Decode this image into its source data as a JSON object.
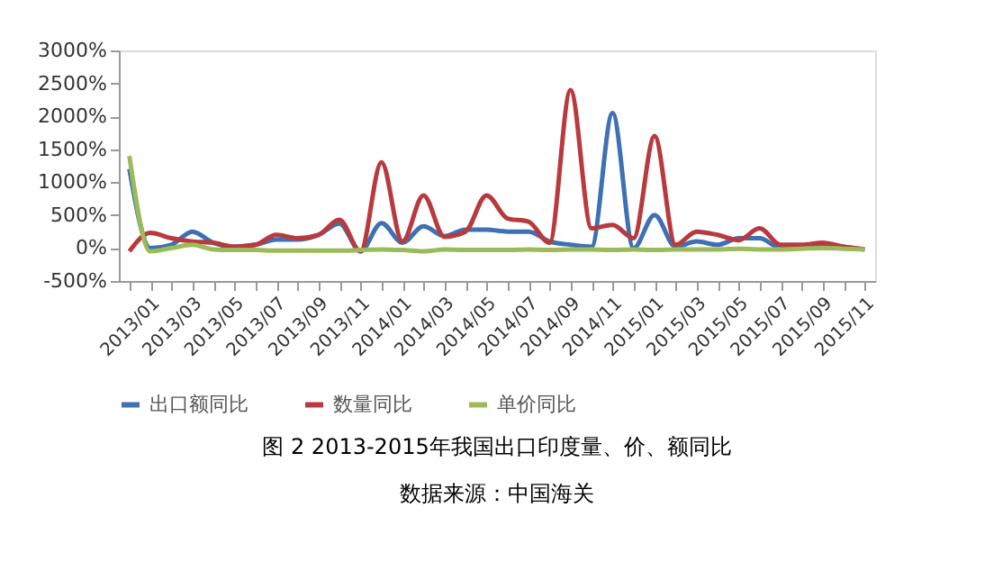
{
  "chart_data": {
    "type": "line",
    "title": "图 2 2013-2015年我国出口印度量、价、额同比",
    "annotations": [
      "数据来源：中国海关"
    ],
    "categories": [
      "2013/01",
      null,
      "2013/03",
      null,
      "2013/05",
      null,
      "2013/07",
      null,
      "2013/09",
      null,
      "2013/11",
      null,
      "2014/01",
      null,
      "2014/03",
      null,
      "2014/05",
      null,
      "2014/07",
      null,
      "2014/09",
      null,
      "2014/11",
      null,
      "2015/01",
      null,
      "2015/03",
      null,
      "2015/05",
      null,
      "2015/07",
      null,
      "2015/09",
      null,
      "2015/11",
      null
    ],
    "series": [
      {
        "name": "出口额同比",
        "color": "#3e70b3",
        "values": [
          1200,
          0,
          50,
          250,
          80,
          20,
          50,
          130,
          130,
          200,
          370,
          -50,
          380,
          80,
          330,
          180,
          280,
          280,
          250,
          250,
          100,
          50,
          20,
          2050,
          0,
          500,
          20,
          100,
          50,
          150,
          150,
          0,
          30,
          50,
          20,
          -20
        ]
      },
      {
        "name": "数量同比",
        "color": "#b83a3e",
        "values": [
          -50,
          230,
          150,
          100,
          80,
          20,
          50,
          200,
          150,
          200,
          430,
          -50,
          1300,
          100,
          800,
          170,
          250,
          800,
          450,
          400,
          80,
          2400,
          300,
          350,
          150,
          1700,
          50,
          250,
          200,
          120,
          300,
          50,
          50,
          80,
          20,
          -20
        ]
      },
      {
        "name": "单价同比",
        "color": "#9bbb59",
        "values": [
          1400,
          -50,
          0,
          50,
          -20,
          -30,
          -30,
          -40,
          -40,
          -40,
          -40,
          -30,
          -20,
          -30,
          -50,
          -20,
          -30,
          -30,
          -30,
          -20,
          -30,
          -20,
          -20,
          -30,
          -20,
          -30,
          -20,
          -20,
          -20,
          -10,
          -20,
          -20,
          -10,
          0,
          -10,
          -20
        ]
      }
    ],
    "ylim": [
      -500,
      3000
    ],
    "yticks": [
      {
        "value": -500,
        "label": "-500%"
      },
      {
        "value": 0,
        "label": "0%"
      },
      {
        "value": 500,
        "label": "500%"
      },
      {
        "value": 1000,
        "label": "1000%"
      },
      {
        "value": 1500,
        "label": "1500%"
      },
      {
        "value": 2000,
        "label": "2000%"
      },
      {
        "value": 2500,
        "label": "2500%"
      },
      {
        "value": 3000,
        "label": "3000%"
      }
    ],
    "grid": false,
    "legend": "bottom",
    "line_style": "solid",
    "marker": "none"
  }
}
